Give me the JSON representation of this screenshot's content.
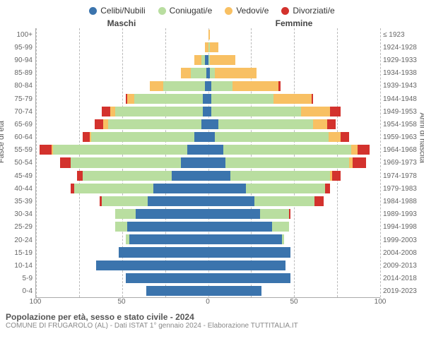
{
  "chart": {
    "type": "population-pyramid",
    "legend": [
      {
        "label": "Celibi/Nubili",
        "color": "#3b74ad"
      },
      {
        "label": "Coniugati/e",
        "color": "#b9dea0"
      },
      {
        "label": "Vedovi/e",
        "color": "#f8c063"
      },
      {
        "label": "Divorziati/e",
        "color": "#d3322d"
      }
    ],
    "headers": {
      "male": "Maschi",
      "female": "Femmine"
    },
    "axis_labels": {
      "left": "Fasce di età",
      "right": "Anni di nascita"
    },
    "x_max": 100,
    "x_ticks": [
      100,
      50,
      0,
      50,
      100
    ],
    "bar_height_pct": 78,
    "grid_color": "#bbbbbb",
    "background_color": "#ffffff",
    "font_family": "Arial",
    "label_fontsize": 10,
    "age_groups": [
      "100+",
      "95-99",
      "90-94",
      "85-89",
      "80-84",
      "75-79",
      "70-74",
      "65-69",
      "60-64",
      "55-59",
      "50-54",
      "45-49",
      "40-44",
      "35-39",
      "30-34",
      "25-29",
      "20-24",
      "15-19",
      "10-14",
      "5-9",
      "0-4"
    ],
    "birth_years": [
      "≤ 1923",
      "1924-1928",
      "1929-1933",
      "1934-1938",
      "1939-1943",
      "1944-1948",
      "1949-1953",
      "1954-1958",
      "1959-1963",
      "1964-1968",
      "1969-1973",
      "1974-1978",
      "1979-1983",
      "1984-1988",
      "1989-1993",
      "1994-1998",
      "1999-2003",
      "2004-2008",
      "2009-2013",
      "2014-2018",
      "2019-2023"
    ],
    "bars": [
      {
        "m": [
          0,
          0,
          0,
          0
        ],
        "f": [
          0,
          0,
          1,
          0
        ]
      },
      {
        "m": [
          0,
          0,
          2,
          0
        ],
        "f": [
          0,
          1,
          5,
          0
        ]
      },
      {
        "m": [
          2,
          2,
          4,
          0
        ],
        "f": [
          0,
          1,
          15,
          0
        ]
      },
      {
        "m": [
          1,
          9,
          6,
          0
        ],
        "f": [
          1,
          3,
          24,
          0
        ]
      },
      {
        "m": [
          2,
          24,
          8,
          0
        ],
        "f": [
          2,
          12,
          27,
          1
        ]
      },
      {
        "m": [
          3,
          40,
          4,
          1
        ],
        "f": [
          2,
          36,
          22,
          1
        ]
      },
      {
        "m": [
          3,
          51,
          3,
          5
        ],
        "f": [
          2,
          52,
          17,
          6
        ]
      },
      {
        "m": [
          4,
          54,
          3,
          5
        ],
        "f": [
          6,
          55,
          8,
          5
        ]
      },
      {
        "m": [
          8,
          60,
          1,
          4
        ],
        "f": [
          4,
          66,
          7,
          5
        ]
      },
      {
        "m": [
          12,
          78,
          1,
          7
        ],
        "f": [
          9,
          74,
          4,
          7
        ]
      },
      {
        "m": [
          16,
          64,
          0,
          6
        ],
        "f": [
          10,
          72,
          2,
          8
        ]
      },
      {
        "m": [
          21,
          52,
          0,
          3
        ],
        "f": [
          13,
          58,
          1,
          5
        ]
      },
      {
        "m": [
          32,
          46,
          0,
          2
        ],
        "f": [
          22,
          46,
          0,
          3
        ]
      },
      {
        "m": [
          35,
          27,
          0,
          1
        ],
        "f": [
          27,
          35,
          0,
          5
        ]
      },
      {
        "m": [
          42,
          12,
          0,
          0
        ],
        "f": [
          30,
          17,
          0,
          1
        ]
      },
      {
        "m": [
          47,
          7,
          0,
          0
        ],
        "f": [
          37,
          10,
          0,
          0
        ]
      },
      {
        "m": [
          46,
          2,
          0,
          0
        ],
        "f": [
          43,
          1,
          0,
          0
        ]
      },
      {
        "m": [
          52,
          0,
          0,
          0
        ],
        "f": [
          48,
          0,
          0,
          0
        ]
      },
      {
        "m": [
          65,
          0,
          0,
          0
        ],
        "f": [
          45,
          0,
          0,
          0
        ]
      },
      {
        "m": [
          48,
          0,
          0,
          0
        ],
        "f": [
          48,
          0,
          0,
          0
        ]
      },
      {
        "m": [
          36,
          0,
          0,
          0
        ],
        "f": [
          31,
          0,
          0,
          0
        ]
      }
    ]
  },
  "footer": {
    "title": "Popolazione per età, sesso e stato civile - 2024",
    "subtitle": "COMUNE DI FRUGAROLO (AL) - Dati ISTAT 1° gennaio 2024 - Elaborazione TUTTITALIA.IT"
  }
}
